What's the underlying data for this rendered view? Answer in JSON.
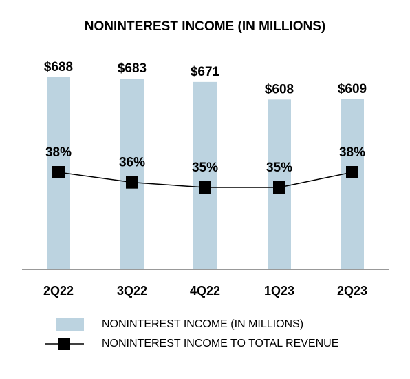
{
  "chart_data": {
    "type": "bar",
    "title": "NONINTEREST INCOME (IN MILLIONS)",
    "categories": [
      "2Q22",
      "3Q22",
      "4Q22",
      "1Q23",
      "2Q23"
    ],
    "series": [
      {
        "name": "NONINTEREST INCOME (IN MILLIONS)",
        "type": "bar",
        "values": [
          688,
          683,
          671,
          608,
          609
        ],
        "labels": [
          "$688",
          "$683",
          "$671",
          "$608",
          "$609"
        ],
        "color": "#bcd3e0"
      },
      {
        "name": "NONINTEREST INCOME TO TOTAL REVENUE",
        "type": "line",
        "values": [
          38,
          36,
          35,
          35,
          38
        ],
        "labels": [
          "38%",
          "36%",
          "35%",
          "35%",
          "38%"
        ],
        "color": "#000000"
      }
    ],
    "legend_position": "bottom",
    "grid": false
  }
}
